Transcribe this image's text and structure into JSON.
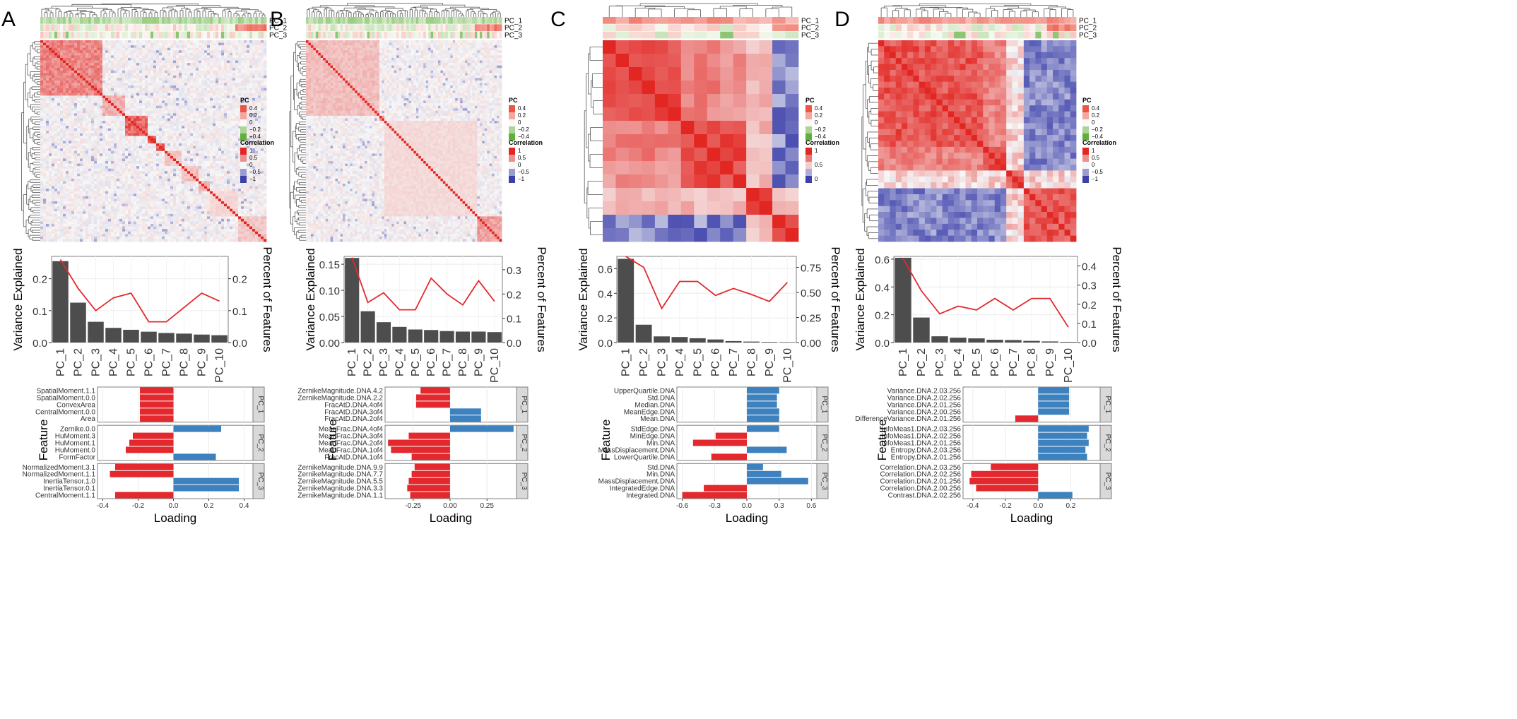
{
  "figure_title": "",
  "legend": {
    "pc_title": "PC",
    "pc_ticks": [
      "0.4",
      "0.2",
      "0",
      "−0.2",
      "−0.4"
    ],
    "corr_title": "Correlation",
    "corr_ticks_default": [
      "1",
      "0.5",
      "0",
      "−0.5",
      "−1"
    ],
    "corr_ticks_c": [
      "1",
      "0.5",
      "0"
    ]
  },
  "colors": {
    "red": "#e3292d",
    "blue": "#3d81bf",
    "bar_dark": "#4d4d4d",
    "line_red": "#e3292d",
    "strip_bg": "#d9d9d9",
    "panel_border": "#7f7f7f"
  },
  "chart_data": [
    {
      "panel": "A",
      "type": "heatmap",
      "heatmap_rows": [
        "PC_1",
        "PC_2",
        "PC_3"
      ],
      "corr_ticks": "default",
      "variance": {
        "type": "bar",
        "categories": [
          "PC_1",
          "PC_2",
          "PC_3",
          "PC_4",
          "PC_5",
          "PC_6",
          "PC_7",
          "PC_8",
          "PC_9",
          "PC_10"
        ],
        "values": [
          0.255,
          0.125,
          0.065,
          0.046,
          0.04,
          0.034,
          0.03,
          0.028,
          0.025,
          0.023
        ],
        "line_values": [
          0.26,
          0.17,
          0.1,
          0.14,
          0.155,
          0.065,
          0.065,
          0.11,
          0.155,
          0.13
        ],
        "ylabel": "Variance Explained",
        "y2label": "Percent of Features",
        "ylim": [
          0,
          0.27
        ],
        "yticks": [
          "0.0",
          "0.1",
          "0.2"
        ],
        "ytick_vals": [
          0,
          0.1,
          0.2
        ],
        "y2lim": [
          0,
          0.27
        ],
        "y2ticks": [
          "0.0",
          "0.1",
          "0.2"
        ],
        "y2tick_vals": [
          0,
          0.1,
          0.2
        ]
      },
      "loadings": {
        "type": "bar",
        "xlabel": "Loading",
        "ylabel": "Feature",
        "xlim": [
          -0.43,
          0.45
        ],
        "xticks": [
          "-0.4",
          "-0.2",
          "0.0",
          "0.2",
          "0.4"
        ],
        "xtick_vals": [
          -0.4,
          -0.2,
          0,
          0.2,
          0.4
        ],
        "groups": [
          {
            "name": "PC_1",
            "features": [
              "SpatialMoment.1.1",
              "SpatialMoment.0.0",
              "ConvexArea",
              "CentralMoment.0.0",
              "Area"
            ],
            "values": [
              -0.19,
              -0.19,
              -0.19,
              -0.19,
              -0.19
            ]
          },
          {
            "name": "PC_2",
            "features": [
              "Zernike.0.0",
              "HuMoment.3",
              "HuMoment.1",
              "HuMoment.0",
              "FormFactor"
            ],
            "values": [
              0.27,
              -0.23,
              -0.25,
              -0.27,
              0.24
            ]
          },
          {
            "name": "PC_3",
            "features": [
              "NormalizedMoment.3.1",
              "NormalizedMoment.1.1",
              "InertiaTensor.1.0",
              "InertiaTensor.0.1",
              "CentralMoment.1.1"
            ],
            "values": [
              -0.33,
              -0.36,
              0.37,
              0.37,
              -0.33
            ]
          }
        ]
      }
    },
    {
      "panel": "B",
      "type": "heatmap",
      "heatmap_rows": [
        "PC_1",
        "PC_2",
        "PC_3"
      ],
      "corr_ticks": "default",
      "variance": {
        "type": "bar",
        "categories": [
          "PC_1",
          "PC_2",
          "PC_3",
          "PC_4",
          "PC_5",
          "PC_6",
          "PC_7",
          "PC_8",
          "PC_9",
          "PC_10"
        ],
        "values": [
          0.162,
          0.06,
          0.039,
          0.03,
          0.025,
          0.024,
          0.022,
          0.021,
          0.021,
          0.02
        ],
        "line_values": [
          0.35,
          0.165,
          0.205,
          0.135,
          0.135,
          0.265,
          0.2,
          0.155,
          0.255,
          0.17
        ],
        "ylabel": "Variance Explained",
        "y2label": "Percent of Features",
        "ylim": [
          0,
          0.165
        ],
        "yticks": [
          "0.00",
          "0.05",
          "0.10",
          "0.15"
        ],
        "ytick_vals": [
          0,
          0.05,
          0.1,
          0.15
        ],
        "y2lim": [
          0,
          0.355
        ],
        "y2ticks": [
          "0.0",
          "0.1",
          "0.2",
          "0.3"
        ],
        "y2tick_vals": [
          0,
          0.1,
          0.2,
          0.3
        ]
      },
      "loadings": {
        "type": "bar",
        "xlabel": "Loading",
        "ylabel": "Feature",
        "xlim": [
          -0.44,
          0.45
        ],
        "xticks": [
          "-0.25",
          "0.00",
          "0.25"
        ],
        "xtick_vals": [
          -0.25,
          0,
          0.25
        ],
        "groups": [
          {
            "name": "PC_1",
            "features": [
              "ZernikeMagnitude.DNA.4.2",
              "ZernikeMagnitude.DNA.2.2",
              "FracAtD.DNA.4of4",
              "FracAtD.DNA.3of4",
              "FracAtD.DNA.2of4"
            ],
            "values": [
              -0.2,
              -0.23,
              -0.23,
              0.21,
              0.21
            ]
          },
          {
            "name": "PC_2",
            "features": [
              "MeanFrac.DNA.4of4",
              "MeanFrac.DNA.3of4",
              "MeanFrac.DNA.2of4",
              "MeanFrac.DNA.1of4",
              "FracAtD.DNA.1of4"
            ],
            "values": [
              0.43,
              -0.28,
              -0.42,
              -0.4,
              -0.26
            ]
          },
          {
            "name": "PC_3",
            "features": [
              "ZernikeMagnitude.DNA.9.9",
              "ZernikeMagnitude.DNA.7.7",
              "ZernikeMagnitude.DNA.5.5",
              "ZernikeMagnitude.DNA.3.3",
              "ZernikeMagnitude.DNA.1.1"
            ],
            "values": [
              -0.24,
              -0.26,
              -0.28,
              -0.29,
              -0.27
            ]
          }
        ]
      }
    },
    {
      "panel": "C",
      "type": "heatmap",
      "heatmap_rows": [
        "PC_1",
        "PC_2",
        "PC_3"
      ],
      "corr_ticks": "c",
      "variance": {
        "type": "bar",
        "categories": [
          "PC_1",
          "PC_2",
          "PC_3",
          "PC_4",
          "PC_5",
          "PC_6",
          "PC_7",
          "PC_8",
          "PC_9",
          "PC_10"
        ],
        "values": [
          0.68,
          0.145,
          0.05,
          0.045,
          0.035,
          0.025,
          0.012,
          0.008,
          0.005,
          0.004
        ],
        "line_values": [
          0.86,
          0.75,
          0.34,
          0.61,
          0.61,
          0.47,
          0.54,
          0.48,
          0.41,
          0.6
        ],
        "ylabel": "Variance Explained",
        "y2label": "Percent of Features",
        "ylim": [
          0,
          0.7
        ],
        "yticks": [
          "0.0",
          "0.2",
          "0.4",
          "0.6"
        ],
        "ytick_vals": [
          0,
          0.2,
          0.4,
          0.6
        ],
        "y2lim": [
          0,
          0.86
        ],
        "y2ticks": [
          "0.00",
          "0.25",
          "0.50",
          "0.75"
        ],
        "y2tick_vals": [
          0,
          0.25,
          0.5,
          0.75
        ]
      },
      "loadings": {
        "type": "bar",
        "xlabel": "Loading",
        "ylabel": "Feature",
        "xlim": [
          -0.65,
          0.65
        ],
        "xticks": [
          "-0.6",
          "-0.3",
          "0.0",
          "0.3",
          "0.6"
        ],
        "xtick_vals": [
          -0.6,
          -0.3,
          0,
          0.3,
          0.6
        ],
        "groups": [
          {
            "name": "PC_1",
            "features": [
              "UpperQuartile.DNA",
              "Std.DNA",
              "Median.DNA",
              "MeanEdge.DNA",
              "Mean.DNA"
            ],
            "values": [
              0.3,
              0.28,
              0.28,
              0.3,
              0.3
            ]
          },
          {
            "name": "PC_2",
            "features": [
              "StdEdge.DNA",
              "MinEdge.DNA",
              "Min.DNA",
              "MassDisplacement.DNA",
              "LowerQuartile.DNA"
            ],
            "values": [
              0.3,
              -0.29,
              -0.5,
              0.37,
              -0.33
            ]
          },
          {
            "name": "PC_3",
            "features": [
              "Std.DNA",
              "Min.DNA",
              "MassDisplacement.DNA",
              "IntegratedEdge.DNA",
              "Integrated.DNA"
            ],
            "values": [
              0.15,
              0.32,
              0.57,
              -0.4,
              -0.6
            ]
          }
        ]
      }
    },
    {
      "panel": "D",
      "type": "heatmap",
      "heatmap_rows": [
        "PC_1",
        "PC_2",
        "PC_3"
      ],
      "corr_ticks": "default",
      "variance": {
        "type": "bar",
        "categories": [
          "PC_1",
          "PC_2",
          "PC_3",
          "PC_4",
          "PC_5",
          "PC_6",
          "PC_7",
          "PC_8",
          "PC_9",
          "PC_10"
        ],
        "values": [
          0.61,
          0.18,
          0.045,
          0.035,
          0.03,
          0.02,
          0.018,
          0.012,
          0.008,
          0.005
        ],
        "line_values": [
          0.44,
          0.27,
          0.15,
          0.19,
          0.17,
          0.23,
          0.17,
          0.23,
          0.23,
          0.08
        ],
        "ylabel": "Variance Explained",
        "y2label": "Percent of Features",
        "ylim": [
          0,
          0.62
        ],
        "yticks": [
          "0.0",
          "0.2",
          "0.4",
          "0.6"
        ],
        "ytick_vals": [
          0,
          0.2,
          0.4,
          0.6
        ],
        "y2lim": [
          0,
          0.45
        ],
        "y2ticks": [
          "0.0",
          "0.1",
          "0.2",
          "0.3",
          "0.4"
        ],
        "y2tick_vals": [
          0,
          0.1,
          0.2,
          0.3,
          0.4
        ]
      },
      "loadings": {
        "type": "bar",
        "xlabel": "Loading",
        "ylabel": "Feature",
        "xlim": [
          -0.46,
          0.38
        ],
        "xticks": [
          "-0.4",
          "-0.2",
          "0.0",
          "0.2"
        ],
        "xtick_vals": [
          -0.4,
          -0.2,
          0,
          0.2
        ],
        "groups": [
          {
            "name": "PC_1",
            "features": [
              "Variance.DNA.2.03.256",
              "Variance.DNA.2.02.256",
              "Variance.DNA.2.01.256",
              "Variance.DNA.2.00.256",
              "DifferenceVariance.DNA.2.01.256"
            ],
            "values": [
              0.19,
              0.19,
              0.19,
              0.19,
              -0.14
            ]
          },
          {
            "name": "PC_2",
            "features": [
              "InfoMeas1.DNA.2.03.256",
              "InfoMeas1.DNA.2.02.256",
              "InfoMeas1.DNA.2.01.256",
              "Entropy.DNA.2.03.256",
              "Entropy.DNA.2.01.256"
            ],
            "values": [
              0.31,
              0.3,
              0.31,
              0.29,
              0.3
            ]
          },
          {
            "name": "PC_3",
            "features": [
              "Correlation.DNA.2.03.256",
              "Correlation.DNA.2.02.256",
              "Correlation.DNA.2.01.256",
              "Correlation.DNA.2.00.256",
              "Contrast.DNA.2.02.256"
            ],
            "values": [
              -0.29,
              -0.41,
              -0.42,
              -0.38,
              0.21
            ]
          }
        ]
      }
    }
  ]
}
